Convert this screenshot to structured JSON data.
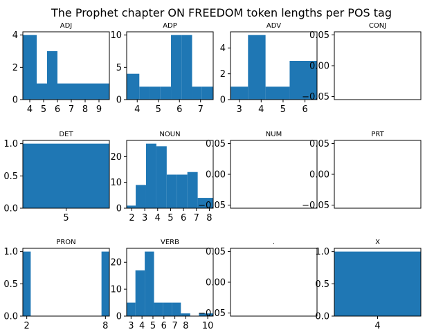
{
  "figure": {
    "title": "The Prophet chapter ON FREEDOM token lengths per POS tag",
    "bar_color": "#1f77b4"
  },
  "chart_data": [
    {
      "type": "bar",
      "title": "ADJ",
      "bins": [
        [
          3.5,
          4.5,
          4
        ],
        [
          4.5,
          5.25,
          1
        ],
        [
          5.25,
          6.0,
          3
        ],
        [
          6.0,
          6.75,
          1
        ],
        [
          6.75,
          7.5,
          1
        ],
        [
          7.5,
          8.25,
          1
        ],
        [
          8.25,
          9.0,
          1
        ],
        [
          9.0,
          9.75,
          1
        ]
      ],
      "xlim": [
        3.5,
        9.75
      ],
      "ylim": [
        0,
        4.2
      ],
      "xticks": [
        4,
        5,
        6,
        7,
        8,
        9
      ],
      "xtick_labels": [
        "4",
        "5",
        "6",
        "7",
        "8",
        "9"
      ],
      "yticks": [
        0,
        2,
        4
      ],
      "ytick_labels": [
        "0",
        "2",
        "4"
      ]
    },
    {
      "type": "bar",
      "title": "ADP",
      "bins": [
        [
          3.5,
          4.1,
          4
        ],
        [
          4.1,
          4.6,
          2
        ],
        [
          4.6,
          5.1,
          2
        ],
        [
          5.1,
          5.6,
          2
        ],
        [
          5.6,
          6.1,
          10
        ],
        [
          6.1,
          6.6,
          10
        ],
        [
          6.6,
          7.05,
          2
        ],
        [
          7.05,
          7.6,
          2
        ]
      ],
      "xlim": [
        3.5,
        7.6
      ],
      "ylim": [
        0,
        10.5
      ],
      "xticks": [
        4,
        5,
        6,
        7
      ],
      "xtick_labels": [
        "4",
        "5",
        "6",
        "7"
      ],
      "yticks": [
        0,
        5,
        10
      ],
      "ytick_labels": [
        "0",
        "5",
        "10"
      ]
    },
    {
      "type": "bar",
      "title": "ADV",
      "bins": [
        [
          2.6,
          3.4,
          1
        ],
        [
          3.4,
          4.2,
          5
        ],
        [
          4.2,
          5.3,
          1
        ],
        [
          5.3,
          6.55,
          3
        ]
      ],
      "xlim": [
        2.6,
        6.55
      ],
      "ylim": [
        0,
        5.25
      ],
      "xticks": [
        3,
        4,
        5,
        6
      ],
      "xtick_labels": [
        "3",
        "4",
        "5",
        "6"
      ],
      "yticks": [
        0,
        2,
        4
      ],
      "ytick_labels": [
        "0",
        "2",
        "4"
      ]
    },
    {
      "type": "bar",
      "title": "CONJ",
      "bins": [],
      "xlim": [
        0,
        1
      ],
      "ylim": [
        -0.055,
        0.055
      ],
      "xticks": [],
      "xtick_labels": [],
      "yticks": [
        -0.05,
        0.0,
        0.05
      ],
      "ytick_labels": [
        "−0.05",
        "0.00",
        "0.05"
      ]
    },
    {
      "type": "bar",
      "title": "DET",
      "bins": [
        [
          4.5,
          5.5,
          1
        ]
      ],
      "xlim": [
        4.5,
        5.5
      ],
      "ylim": [
        0,
        1.05
      ],
      "xticks": [
        5
      ],
      "xtick_labels": [
        "5"
      ],
      "yticks": [
        0,
        0.5,
        1.0
      ],
      "ytick_labels": [
        "0.0",
        "0.5",
        "1.0"
      ]
    },
    {
      "type": "bar",
      "title": "NOUN",
      "bins": [
        [
          1.6,
          2.3,
          1
        ],
        [
          2.3,
          3.1,
          9
        ],
        [
          3.1,
          3.9,
          25
        ],
        [
          3.9,
          4.7,
          24
        ],
        [
          4.7,
          5.5,
          13
        ],
        [
          5.5,
          6.3,
          13
        ],
        [
          6.3,
          7.1,
          14
        ],
        [
          7.1,
          7.9,
          4
        ],
        [
          7.9,
          8.3,
          4
        ]
      ],
      "xlim": [
        1.6,
        8.3
      ],
      "ylim": [
        0,
        26.25
      ],
      "xticks": [
        2,
        3,
        4,
        5,
        6,
        7,
        8
      ],
      "xtick_labels": [
        "2",
        "3",
        "4",
        "5",
        "6",
        "7",
        "8"
      ],
      "yticks": [
        0,
        10,
        20
      ],
      "ytick_labels": [
        "0",
        "10",
        "20"
      ]
    },
    {
      "type": "bar",
      "title": "NUM",
      "bins": [],
      "xlim": [
        0,
        1
      ],
      "ylim": [
        -0.055,
        0.055
      ],
      "xticks": [],
      "xtick_labels": [],
      "yticks": [
        -0.05,
        0.0,
        0.05
      ],
      "ytick_labels": [
        "−0.05",
        "0.00",
        "0.05"
      ]
    },
    {
      "type": "bar",
      "title": "PRT",
      "bins": [],
      "xlim": [
        0,
        1
      ],
      "ylim": [
        -0.055,
        0.055
      ],
      "xticks": [],
      "xtick_labels": [],
      "yticks": [
        -0.05,
        0.0,
        0.05
      ],
      "ytick_labels": [
        "−0.05",
        "0.00",
        "0.05"
      ]
    },
    {
      "type": "bar",
      "title": "PRON",
      "bins": [
        [
          1.7,
          2.3,
          1
        ],
        [
          7.7,
          8.3,
          1
        ]
      ],
      "xlim": [
        1.7,
        8.3
      ],
      "ylim": [
        0,
        1.05
      ],
      "xticks": [
        2,
        8
      ],
      "xtick_labels": [
        "2",
        "8"
      ],
      "yticks": [
        0,
        0.5,
        1.0
      ],
      "ytick_labels": [
        "0.0",
        "0.5",
        "1.0"
      ]
    },
    {
      "type": "bar",
      "title": "VERB",
      "bins": [
        [
          2.6,
          3.4,
          5
        ],
        [
          3.4,
          4.25,
          17
        ],
        [
          4.25,
          5.1,
          24
        ],
        [
          5.1,
          5.9,
          5
        ],
        [
          5.9,
          6.75,
          5
        ],
        [
          6.75,
          7.55,
          5
        ],
        [
          7.55,
          8.4,
          1
        ],
        [
          8.4,
          9.2,
          0
        ],
        [
          9.2,
          10.05,
          1
        ],
        [
          10.05,
          10.5,
          1
        ]
      ],
      "xlim": [
        2.6,
        10.5
      ],
      "ylim": [
        0,
        25.2
      ],
      "xticks": [
        3,
        4,
        5,
        6,
        7,
        8,
        10
      ],
      "xtick_labels": [
        "3",
        "4",
        "5",
        "6",
        "7",
        "8",
        "10"
      ],
      "yticks": [
        0,
        10,
        20
      ],
      "ytick_labels": [
        "0",
        "10",
        "20"
      ]
    },
    {
      "type": "bar",
      "title": ".",
      "bins": [],
      "xlim": [
        0,
        1
      ],
      "ylim": [
        -0.055,
        0.055
      ],
      "xticks": [],
      "xtick_labels": [],
      "yticks": [
        -0.05,
        0.0,
        0.05
      ],
      "ytick_labels": [
        "−0.05",
        "0.00",
        "0.05"
      ]
    },
    {
      "type": "bar",
      "title": "X",
      "bins": [
        [
          3.5,
          4.5,
          1
        ]
      ],
      "xlim": [
        3.5,
        4.5
      ],
      "ylim": [
        0,
        1.05
      ],
      "xticks": [
        4
      ],
      "xtick_labels": [
        "4"
      ],
      "yticks": [
        0,
        0.5,
        1.0
      ],
      "ytick_labels": [
        "0.0",
        "0.5",
        "1.0"
      ]
    }
  ]
}
